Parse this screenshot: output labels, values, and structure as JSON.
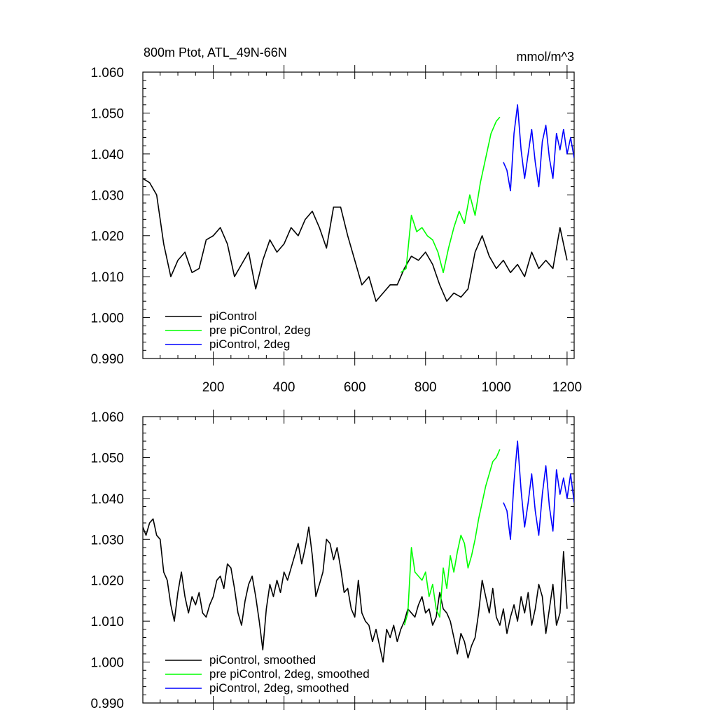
{
  "chart_data": [
    {
      "type": "line",
      "title": "800m Ptot, ATL_49N-66N",
      "units": "mmol/m^3",
      "xlim": [
        1,
        1220
      ],
      "ylim": [
        0.99,
        1.06
      ],
      "xticks": [
        200,
        400,
        600,
        800,
        1000,
        1200
      ],
      "xtick_labels": [
        "200",
        "400",
        "600",
        "800",
        "1000",
        "1200"
      ],
      "yticks": [
        0.99,
        1.0,
        1.01,
        1.02,
        1.03,
        1.04,
        1.05,
        1.06
      ],
      "ytick_labels": [
        "0.990",
        "1.000",
        "1.010",
        "1.020",
        "1.030",
        "1.040",
        "1.050",
        "1.060"
      ],
      "grid": false,
      "legend_position": "bottom-left",
      "series": [
        {
          "name": "piControl",
          "color": "#000000",
          "x": [
            1,
            20,
            40,
            60,
            80,
            100,
            120,
            140,
            160,
            180,
            200,
            220,
            240,
            260,
            280,
            300,
            320,
            340,
            360,
            380,
            400,
            420,
            440,
            460,
            480,
            500,
            520,
            540,
            560,
            580,
            600,
            620,
            640,
            660,
            680,
            700,
            720,
            740,
            760,
            780,
            800,
            820,
            840,
            860,
            880,
            900,
            920,
            940,
            960,
            980,
            1000,
            1020,
            1040,
            1060,
            1080,
            1100,
            1120,
            1140,
            1160,
            1180,
            1200
          ],
          "y": [
            1.034,
            1.033,
            1.03,
            1.018,
            1.01,
            1.014,
            1.016,
            1.011,
            1.012,
            1.019,
            1.02,
            1.022,
            1.018,
            1.01,
            1.013,
            1.016,
            1.007,
            1.014,
            1.019,
            1.016,
            1.018,
            1.022,
            1.02,
            1.024,
            1.026,
            1.022,
            1.017,
            1.027,
            1.027,
            1.02,
            1.014,
            1.008,
            1.01,
            1.004,
            1.006,
            1.008,
            1.008,
            1.012,
            1.015,
            1.014,
            1.016,
            1.013,
            1.008,
            1.004,
            1.006,
            1.005,
            1.007,
            1.016,
            1.02,
            1.015,
            1.012,
            1.014,
            1.011,
            1.013,
            1.01,
            1.016,
            1.012,
            1.014,
            1.012,
            1.022,
            1.014
          ]
        },
        {
          "name": "pre piControl, 2deg",
          "color": "#00ff00",
          "x": [
            730,
            745,
            760,
            775,
            790,
            805,
            820,
            835,
            850,
            865,
            880,
            895,
            910,
            925,
            940,
            955,
            970,
            985,
            1000,
            1010
          ],
          "y": [
            1.011,
            1.012,
            1.025,
            1.021,
            1.022,
            1.02,
            1.019,
            1.016,
            1.011,
            1.017,
            1.022,
            1.026,
            1.023,
            1.03,
            1.025,
            1.033,
            1.039,
            1.045,
            1.048,
            1.049
          ]
        },
        {
          "name": "piControl, 2deg",
          "color": "#0000ff",
          "x": [
            1020,
            1030,
            1040,
            1050,
            1060,
            1070,
            1080,
            1090,
            1100,
            1110,
            1120,
            1130,
            1140,
            1150,
            1160,
            1170,
            1180,
            1190,
            1200,
            1210,
            1220
          ],
          "y": [
            1.038,
            1.036,
            1.031,
            1.045,
            1.052,
            1.041,
            1.034,
            1.04,
            1.046,
            1.038,
            1.032,
            1.043,
            1.047,
            1.039,
            1.034,
            1.045,
            1.041,
            1.046,
            1.04,
            1.044,
            1.039
          ]
        }
      ]
    },
    {
      "type": "line",
      "xlim": [
        1,
        1220
      ],
      "ylim": [
        0.99,
        1.06
      ],
      "yticks": [
        0.99,
        1.0,
        1.01,
        1.02,
        1.03,
        1.04,
        1.05,
        1.06
      ],
      "ytick_labels": [
        "0.990",
        "1.000",
        "1.010",
        "1.020",
        "1.030",
        "1.040",
        "1.050",
        "1.060"
      ],
      "grid": false,
      "legend_position": "bottom-left",
      "series": [
        {
          "name": "piControl, smoothed",
          "color": "#000000",
          "x": [
            1,
            10,
            20,
            30,
            40,
            50,
            60,
            70,
            80,
            90,
            100,
            110,
            120,
            130,
            140,
            150,
            160,
            170,
            180,
            190,
            200,
            210,
            220,
            230,
            240,
            250,
            260,
            270,
            280,
            290,
            300,
            310,
            320,
            330,
            340,
            350,
            360,
            370,
            380,
            390,
            400,
            410,
            420,
            430,
            440,
            450,
            460,
            470,
            480,
            490,
            500,
            510,
            520,
            530,
            540,
            550,
            560,
            570,
            580,
            590,
            600,
            610,
            620,
            630,
            640,
            650,
            660,
            670,
            680,
            690,
            700,
            710,
            720,
            730,
            740,
            750,
            760,
            770,
            780,
            790,
            800,
            810,
            820,
            830,
            840,
            850,
            860,
            870,
            880,
            890,
            900,
            910,
            920,
            930,
            940,
            950,
            960,
            970,
            980,
            990,
            1000,
            1010,
            1020,
            1030,
            1040,
            1050,
            1060,
            1070,
            1080,
            1090,
            1100,
            1110,
            1120,
            1130,
            1140,
            1150,
            1160,
            1170,
            1180,
            1190,
            1200
          ],
          "y": [
            1.033,
            1.031,
            1.034,
            1.035,
            1.031,
            1.03,
            1.022,
            1.02,
            1.014,
            1.01,
            1.017,
            1.022,
            1.016,
            1.012,
            1.016,
            1.014,
            1.017,
            1.012,
            1.011,
            1.014,
            1.016,
            1.02,
            1.021,
            1.018,
            1.024,
            1.023,
            1.018,
            1.012,
            1.009,
            1.015,
            1.019,
            1.021,
            1.016,
            1.01,
            1.003,
            1.013,
            1.019,
            1.016,
            1.02,
            1.017,
            1.022,
            1.02,
            1.023,
            1.026,
            1.029,
            1.024,
            1.028,
            1.033,
            1.026,
            1.016,
            1.019,
            1.022,
            1.03,
            1.029,
            1.025,
            1.028,
            1.023,
            1.017,
            1.018,
            1.013,
            1.011,
            1.02,
            1.012,
            1.01,
            1.009,
            1.005,
            1.008,
            1.004,
            1.0,
            1.008,
            1.006,
            1.009,
            1.005,
            1.008,
            1.01,
            1.013,
            1.012,
            1.011,
            1.014,
            1.016,
            1.012,
            1.013,
            1.009,
            1.011,
            1.017,
            1.013,
            1.012,
            1.01,
            1.006,
            1.002,
            1.007,
            1.005,
            1.001,
            1.004,
            1.006,
            1.012,
            1.02,
            1.016,
            1.012,
            1.018,
            1.011,
            1.009,
            1.013,
            1.007,
            1.011,
            1.014,
            1.01,
            1.016,
            1.012,
            1.017,
            1.009,
            1.013,
            1.019,
            1.016,
            1.007,
            1.013,
            1.019,
            1.009,
            1.012,
            1.027,
            1.013
          ]
        },
        {
          "name": "pre piControl, 2deg, smoothed",
          "color": "#00ff00",
          "x": [
            740,
            750,
            760,
            770,
            780,
            790,
            800,
            810,
            820,
            830,
            840,
            850,
            860,
            870,
            880,
            890,
            900,
            910,
            920,
            930,
            940,
            950,
            960,
            970,
            980,
            990,
            1000,
            1010
          ],
          "y": [
            1.009,
            1.012,
            1.028,
            1.022,
            1.021,
            1.02,
            1.022,
            1.016,
            1.019,
            1.013,
            1.011,
            1.023,
            1.018,
            1.026,
            1.022,
            1.027,
            1.031,
            1.029,
            1.023,
            1.026,
            1.03,
            1.035,
            1.039,
            1.043,
            1.046,
            1.049,
            1.05,
            1.052
          ]
        },
        {
          "name": "piControl, 2deg, smoothed",
          "color": "#0000ff",
          "x": [
            1020,
            1030,
            1040,
            1050,
            1060,
            1070,
            1080,
            1090,
            1100,
            1110,
            1120,
            1130,
            1140,
            1150,
            1160,
            1170,
            1180,
            1190,
            1200,
            1210,
            1220
          ],
          "y": [
            1.039,
            1.037,
            1.03,
            1.044,
            1.054,
            1.042,
            1.033,
            1.039,
            1.046,
            1.037,
            1.031,
            1.041,
            1.048,
            1.038,
            1.032,
            1.047,
            1.041,
            1.045,
            1.04,
            1.046,
            1.039
          ]
        }
      ]
    }
  ]
}
